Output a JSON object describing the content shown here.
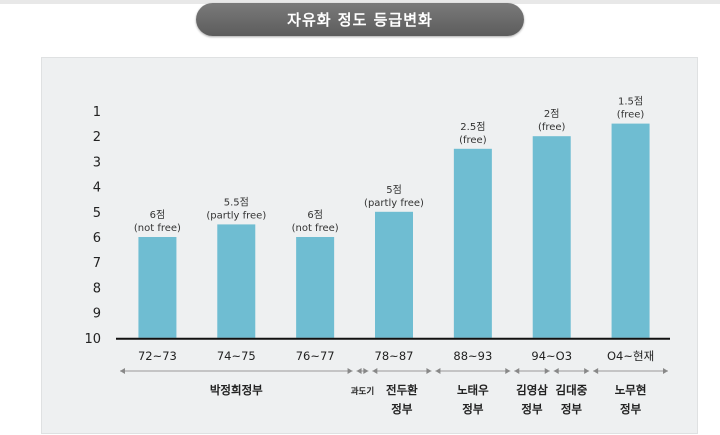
{
  "title": "자유화 정도 등급변화",
  "chart_data": {
    "type": "bar",
    "categories": [
      "72~73",
      "74~75",
      "76~77",
      "78~87",
      "88~93",
      "94~O3",
      "O4~현재"
    ],
    "values": [
      6,
      5.5,
      6,
      5,
      2.5,
      2,
      1.5
    ],
    "data_labels": [
      [
        "6점",
        "(not free)"
      ],
      [
        "5.5점",
        "(partly free)"
      ],
      [
        "6점",
        "(not free)"
      ],
      [
        "5점",
        "(partly free)"
      ],
      [
        "2.5점",
        "(free)"
      ],
      [
        "2점",
        "(free)"
      ],
      [
        "1.5점",
        "(free)"
      ]
    ],
    "y_ticks": [
      "1",
      "2",
      "3",
      "4",
      "5",
      "6",
      "7",
      "8",
      "9",
      "10"
    ],
    "ylim": [
      10,
      0.4
    ],
    "y_axis_inverted": true,
    "bar_baseline": 10,
    "bar_color": "#6fbdd2",
    "governments": [
      {
        "lines": [
          "박정희정부"
        ],
        "from": 0,
        "to": 3
      },
      {
        "lines": [
          "과도기"
        ],
        "from": 3,
        "to": 3.2,
        "small": true
      },
      {
        "lines": [
          "전두환",
          "정부"
        ],
        "from": 3.2,
        "to": 4
      },
      {
        "lines": [
          "노태우",
          "정부"
        ],
        "from": 4,
        "to": 5
      },
      {
        "lines": [
          "김영삼",
          "정부"
        ],
        "from": 5,
        "to": 5.5
      },
      {
        "lines": [
          "김대중",
          "정부"
        ],
        "from": 5.5,
        "to": 6
      },
      {
        "lines": [
          "노무현",
          "정부"
        ],
        "from": 6,
        "to": 7
      }
    ]
  }
}
